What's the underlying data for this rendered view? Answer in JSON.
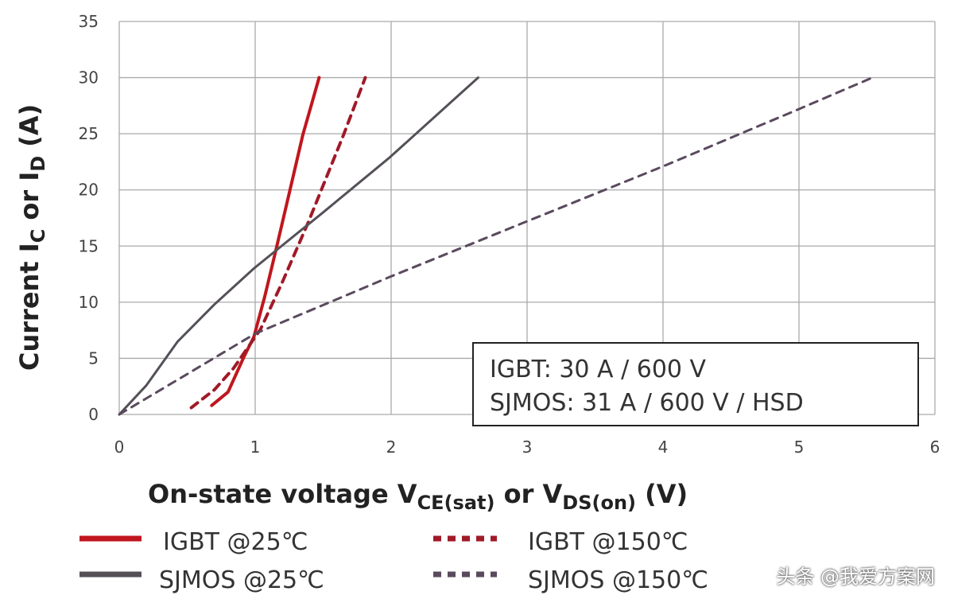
{
  "chart_data": {
    "type": "line",
    "title": "",
    "xlabel": "On-state voltage V_CE(sat) or V_DS(on) (V)",
    "xlabel_parts": {
      "main": "On-state voltage V",
      "sub1": "CE(sat)",
      "mid": " or V",
      "sub2": "DS(on)",
      "end": " (V)"
    },
    "ylabel": "Current I_C or I_D (A)",
    "ylabel_parts": {
      "main": "Current I",
      "sub1": "C",
      "mid": " or I",
      "sub2": "D",
      "end": " (A)"
    },
    "xlim": [
      0,
      6
    ],
    "ylim": [
      0,
      35
    ],
    "xticks": [
      "0",
      "1",
      "2",
      "3",
      "4",
      "5",
      "6"
    ],
    "yticks": [
      "0",
      "5",
      "10",
      "15",
      "20",
      "25",
      "30",
      "35"
    ],
    "grid": true,
    "series": [
      {
        "name": "IGBT @25℃",
        "color": "#c0161e",
        "dash": false,
        "points": [
          [
            0.68,
            0.8
          ],
          [
            0.8,
            2.0
          ],
          [
            0.92,
            5.2
          ],
          [
            0.99,
            6.9
          ],
          [
            1.07,
            10.5
          ],
          [
            1.15,
            14.5
          ],
          [
            1.25,
            19.7
          ],
          [
            1.35,
            24.9
          ],
          [
            1.47,
            30
          ]
        ]
      },
      {
        "name": "IGBT @150℃",
        "color": "#a01a28",
        "dash": true,
        "points": [
          [
            0.53,
            0.6
          ],
          [
            0.7,
            2.2
          ],
          [
            0.84,
            4.1
          ],
          [
            1.04,
            7.6
          ],
          [
            1.2,
            11.8
          ],
          [
            1.39,
            17.1
          ],
          [
            1.65,
            24.9
          ],
          [
            1.81,
            30
          ]
        ]
      },
      {
        "name": "SJMOS @25℃",
        "color": "#555058",
        "dash": false,
        "points": [
          [
            0,
            0
          ],
          [
            0.2,
            2.6
          ],
          [
            0.43,
            6.5
          ],
          [
            0.7,
            9.8
          ],
          [
            0.99,
            13
          ],
          [
            1.5,
            18
          ],
          [
            1.99,
            22.9
          ],
          [
            2.64,
            30
          ]
        ]
      },
      {
        "name": "SJMOS @150℃",
        "color": "#5a4a5e",
        "dash": true,
        "points": [
          [
            0,
            0
          ],
          [
            1,
            7.2
          ],
          [
            2,
            12.3
          ],
          [
            3,
            17.2
          ],
          [
            4,
            22.1
          ],
          [
            5,
            27.2
          ],
          [
            5.54,
            30
          ]
        ]
      }
    ],
    "annotation": [
      "IGBT: 30 A / 600 V",
      "SJMOS: 31 A / 600 V / HSD"
    ],
    "legend_placement": "bottom"
  },
  "watermark": "头条 @我爱方案网"
}
